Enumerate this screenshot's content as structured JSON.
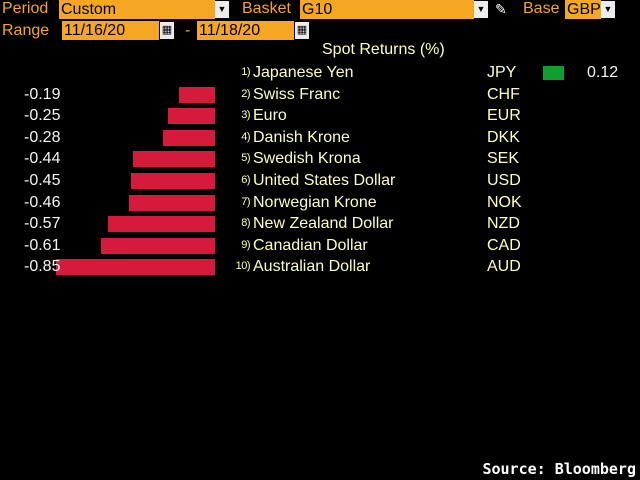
{
  "toolbar": {
    "period_label": "Period",
    "period_value": "Custom",
    "basket_label": "Basket",
    "basket_value": "G10",
    "base_label": "Base",
    "base_value": "GBP",
    "range_label": "Range",
    "range_start": "11/16/20",
    "range_separator": "-",
    "range_end": "11/18/20"
  },
  "icons": {
    "dropdown": "chevron-down-icon",
    "calendar": "calendar-icon",
    "edit": "pencil-icon"
  },
  "colors": {
    "negative_bar": "#d61a3c",
    "positive_bar": "#119e2c",
    "field_bg": "#f5a623"
  },
  "chart_data": {
    "type": "bar",
    "title": "Spot Returns (%)",
    "xlabel": "",
    "ylabel": "",
    "rows": [
      {
        "rank": "1)",
        "currency": "Japanese Yen",
        "code": "JPY",
        "value": 0.12,
        "label": "0.12"
      },
      {
        "rank": "2)",
        "currency": "Swiss Franc",
        "code": "CHF",
        "value": -0.19,
        "label": "-0.19"
      },
      {
        "rank": "3)",
        "currency": "Euro",
        "code": "EUR",
        "value": -0.25,
        "label": "-0.25"
      },
      {
        "rank": "4)",
        "currency": "Danish Krone",
        "code": "DKK",
        "value": -0.28,
        "label": "-0.28"
      },
      {
        "rank": "5)",
        "currency": "Swedish Krona",
        "code": "SEK",
        "value": -0.44,
        "label": "-0.44"
      },
      {
        "rank": "6)",
        "currency": "United States Dollar",
        "code": "USD",
        "value": -0.45,
        "label": "-0.45"
      },
      {
        "rank": "7)",
        "currency": "Norwegian Krone",
        "code": "NOK",
        "value": -0.46,
        "label": "-0.46"
      },
      {
        "rank": "8)",
        "currency": "New Zealand Dollar",
        "code": "NZD",
        "value": -0.57,
        "label": "-0.57"
      },
      {
        "rank": "9)",
        "currency": "Canadian Dollar",
        "code": "CAD",
        "value": -0.61,
        "label": "-0.61"
      },
      {
        "rank": "10)",
        "currency": "Australian Dollar",
        "code": "AUD",
        "value": -0.85,
        "label": "-0.85"
      }
    ]
  },
  "footer": {
    "source": "Source: Bloomberg"
  }
}
